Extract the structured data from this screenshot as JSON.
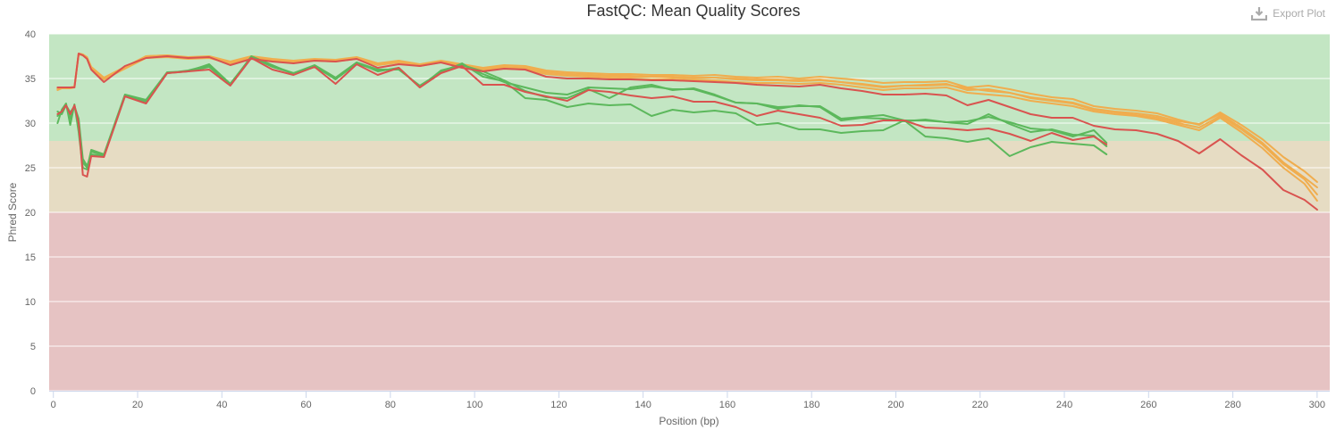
{
  "export": {
    "label": "Export Plot",
    "icon": "download-icon"
  },
  "chart_data": {
    "type": "line",
    "title": "FastQC: Mean Quality Scores",
    "xlabel": "Position (bp)",
    "ylabel": "Phred Score",
    "xlim": [
      -1,
      303
    ],
    "ylim": [
      0,
      40
    ],
    "xticks": [
      0,
      20,
      40,
      60,
      80,
      100,
      120,
      140,
      160,
      180,
      200,
      220,
      240,
      260,
      280,
      300
    ],
    "yticks": [
      0,
      5,
      10,
      15,
      20,
      25,
      30,
      35,
      40
    ],
    "grid": true,
    "legend": "none",
    "bands": [
      {
        "from": 28,
        "to": 40,
        "color": "#c3e6c3"
      },
      {
        "from": 20,
        "to": 28,
        "color": "#e6dcc3"
      },
      {
        "from": 0,
        "to": 20,
        "color": "#e6c3c3"
      }
    ],
    "series": [
      {
        "color": "#f0ad4e",
        "x": [
          1,
          2,
          3,
          4,
          5,
          6,
          7,
          8,
          9,
          12,
          17,
          22,
          27,
          32,
          37,
          42,
          47,
          52,
          57,
          62,
          67,
          72,
          77,
          82,
          87,
          92,
          97,
          102,
          107,
          112,
          117,
          122,
          127,
          132,
          137,
          142,
          147,
          152,
          157,
          162,
          167,
          172,
          177,
          182,
          187,
          192,
          197,
          202,
          207,
          212,
          217,
          222,
          227,
          232,
          237,
          242,
          247,
          252,
          257,
          262,
          267,
          272,
          277,
          282,
          287,
          292,
          297,
          300
        ],
        "y": [
          33.8,
          34.0,
          34.0,
          34.0,
          34.0,
          37.8,
          37.7,
          37.3,
          36.2,
          35.0,
          36.2,
          37.5,
          37.6,
          37.3,
          37.4,
          36.8,
          37.4,
          37.1,
          36.9,
          37.1,
          37.0,
          37.3,
          36.6,
          36.9,
          36.5,
          36.9,
          36.5,
          36.0,
          36.3,
          36.2,
          35.7,
          35.5,
          35.4,
          35.3,
          35.3,
          35.2,
          35.2,
          35.1,
          35.1,
          35.0,
          34.9,
          34.9,
          34.8,
          34.9,
          34.6,
          34.4,
          34.1,
          34.2,
          34.2,
          34.3,
          33.9,
          33.6,
          33.4,
          32.9,
          32.6,
          32.3,
          31.6,
          31.3,
          31.1,
          30.8,
          30.2,
          29.9,
          31.0,
          29.5,
          27.8,
          25.6,
          23.9,
          22.8
        ]
      },
      {
        "color": "#f0ad4e",
        "x": [
          1,
          2,
          3,
          4,
          5,
          6,
          7,
          8,
          9,
          12,
          17,
          22,
          27,
          32,
          37,
          42,
          47,
          52,
          57,
          62,
          67,
          72,
          77,
          82,
          87,
          92,
          97,
          102,
          107,
          112,
          117,
          122,
          127,
          132,
          137,
          142,
          147,
          152,
          157,
          162,
          167,
          172,
          177,
          182,
          187,
          192,
          197,
          202,
          207,
          212,
          217,
          222,
          227,
          232,
          237,
          242,
          247,
          252,
          257,
          262,
          267,
          272,
          277,
          282,
          287,
          292,
          297,
          300
        ],
        "y": [
          33.9,
          34.0,
          34.0,
          34.0,
          34.1,
          37.8,
          37.7,
          37.4,
          36.3,
          35.1,
          36.3,
          37.5,
          37.6,
          37.4,
          37.5,
          36.9,
          37.5,
          37.2,
          37.0,
          37.2,
          37.1,
          37.4,
          36.7,
          37.0,
          36.6,
          37.0,
          36.6,
          36.2,
          36.5,
          36.4,
          35.9,
          35.7,
          35.6,
          35.5,
          35.5,
          35.4,
          35.4,
          35.3,
          35.4,
          35.2,
          35.1,
          35.2,
          35.0,
          35.2,
          35.0,
          34.8,
          34.5,
          34.6,
          34.6,
          34.7,
          34.0,
          34.2,
          33.8,
          33.3,
          32.9,
          32.7,
          31.9,
          31.6,
          31.4,
          31.1,
          30.4,
          29.8,
          31.2,
          29.8,
          28.2,
          26.2,
          24.6,
          23.4
        ]
      },
      {
        "color": "#f0ad4e",
        "x": [
          1,
          2,
          3,
          4,
          5,
          6,
          7,
          8,
          9,
          12,
          17,
          22,
          27,
          32,
          37,
          42,
          47,
          52,
          57,
          62,
          67,
          72,
          77,
          82,
          87,
          92,
          97,
          102,
          107,
          112,
          117,
          122,
          127,
          132,
          137,
          142,
          147,
          152,
          157,
          162,
          167,
          172,
          177,
          182,
          187,
          192,
          197,
          202,
          207,
          212,
          217,
          222,
          227,
          232,
          237,
          242,
          247,
          252,
          257,
          262,
          267,
          272,
          277,
          282,
          287,
          292,
          297,
          300
        ],
        "y": [
          33.7,
          33.9,
          33.9,
          33.9,
          34.0,
          37.7,
          37.6,
          37.2,
          36.1,
          34.9,
          36.1,
          37.3,
          37.4,
          37.2,
          37.3,
          36.7,
          37.3,
          37.0,
          36.8,
          37.0,
          36.9,
          37.2,
          36.5,
          36.8,
          36.4,
          36.8,
          36.3,
          35.9,
          36.1,
          36.0,
          35.5,
          35.3,
          35.2,
          35.1,
          35.0,
          34.9,
          34.9,
          34.8,
          34.8,
          34.6,
          34.5,
          34.5,
          34.4,
          34.5,
          34.3,
          34.0,
          33.7,
          33.9,
          33.9,
          34.0,
          33.4,
          33.2,
          33.0,
          32.5,
          32.2,
          31.9,
          31.3,
          31.0,
          30.8,
          30.4,
          29.8,
          29.2,
          30.6,
          29.0,
          27.2,
          25.0,
          23.2,
          21.3
        ]
      },
      {
        "color": "#f0ad4e",
        "x": [
          1,
          2,
          3,
          4,
          5,
          6,
          7,
          8,
          9,
          12,
          17,
          22,
          27,
          32,
          37,
          42,
          47,
          52,
          57,
          62,
          67,
          72,
          77,
          82,
          87,
          92,
          97,
          102,
          107,
          112,
          117,
          122,
          127,
          132,
          137,
          142,
          147,
          152,
          157,
          162,
          167,
          172,
          177,
          182,
          187,
          192,
          197,
          202,
          207,
          212,
          217,
          222,
          227,
          232,
          237,
          242,
          247,
          252,
          257,
          262,
          267,
          272,
          277,
          282,
          287,
          292,
          297,
          300
        ],
        "y": [
          33.8,
          33.9,
          34.0,
          34.0,
          34.0,
          37.8,
          37.6,
          37.3,
          36.2,
          35.0,
          36.2,
          37.4,
          37.5,
          37.3,
          37.4,
          36.8,
          37.4,
          37.1,
          36.9,
          37.1,
          37.0,
          37.3,
          36.6,
          36.9,
          36.5,
          36.9,
          36.4,
          36.1,
          36.3,
          36.2,
          35.7,
          35.5,
          35.4,
          35.3,
          35.2,
          35.2,
          35.1,
          35.0,
          35.1,
          34.9,
          34.8,
          34.8,
          34.7,
          34.8,
          34.6,
          34.3,
          34.0,
          34.2,
          34.3,
          34.4,
          33.7,
          33.8,
          33.4,
          32.8,
          32.5,
          32.2,
          31.5,
          31.2,
          30.9,
          30.6,
          30.0,
          29.5,
          30.8,
          29.3,
          27.6,
          25.4,
          23.7,
          22.0
        ]
      },
      {
        "color": "#5cb85c",
        "x": [
          1,
          2,
          3,
          4,
          5,
          6,
          7,
          8,
          9,
          12,
          17,
          22,
          27,
          32,
          37,
          42,
          47,
          52,
          57,
          62,
          67,
          72,
          77,
          82,
          87,
          92,
          97,
          102,
          107,
          112,
          117,
          122,
          127,
          132,
          137,
          142,
          147,
          152,
          157,
          162,
          167,
          172,
          177,
          182,
          187,
          192,
          197,
          202,
          207,
          212,
          217,
          222,
          227,
          232,
          237,
          242,
          247,
          250
        ],
        "y": [
          30.0,
          31.5,
          32.2,
          29.8,
          32.1,
          29.0,
          25.0,
          24.8,
          27.0,
          26.5,
          33.2,
          32.6,
          35.7,
          35.8,
          36.6,
          34.4,
          37.4,
          36.3,
          35.6,
          36.4,
          34.9,
          36.7,
          35.9,
          36.1,
          34.1,
          35.8,
          36.6,
          35.5,
          34.6,
          34.0,
          33.4,
          33.2,
          34.0,
          33.9,
          33.8,
          34.1,
          33.8,
          33.8,
          33.1,
          32.3,
          32.2,
          31.8,
          31.9,
          31.9,
          30.5,
          30.7,
          30.9,
          30.3,
          30.3,
          30.1,
          30.2,
          30.7,
          30.1,
          29.4,
          29.2,
          28.5,
          29.2,
          27.8
        ]
      },
      {
        "color": "#5cb85c",
        "x": [
          1,
          2,
          3,
          4,
          5,
          6,
          7,
          8,
          9,
          12,
          17,
          22,
          27,
          32,
          37,
          42,
          47,
          52,
          57,
          62,
          67,
          72,
          77,
          82,
          87,
          92,
          97,
          102,
          107,
          112,
          117,
          122,
          127,
          132,
          137,
          142,
          147,
          152,
          157,
          162,
          167,
          172,
          177,
          182,
          187,
          192,
          197,
          202,
          207,
          212,
          217,
          222,
          227,
          232,
          237,
          242,
          247,
          250
        ],
        "y": [
          31.3,
          31.0,
          32.0,
          31.2,
          31.9,
          30.5,
          26.0,
          25.2,
          26.5,
          26.3,
          33.0,
          32.4,
          35.6,
          35.8,
          36.3,
          34.3,
          37.5,
          36.5,
          35.5,
          36.3,
          35.0,
          36.8,
          35.8,
          36.2,
          34.0,
          35.9,
          36.5,
          35.8,
          34.8,
          33.6,
          32.9,
          32.8,
          33.8,
          32.8,
          34.0,
          34.3,
          33.7,
          33.9,
          33.2,
          32.3,
          32.2,
          31.6,
          32.0,
          31.8,
          30.3,
          30.6,
          30.5,
          30.2,
          30.4,
          30.1,
          29.9,
          31.0,
          29.9,
          29.0,
          29.3,
          28.7,
          28.6,
          27.4
        ]
      },
      {
        "color": "#5cb85c",
        "x": [
          1,
          2,
          3,
          4,
          5,
          6,
          7,
          8,
          9,
          12,
          17,
          22,
          27,
          32,
          37,
          42,
          47,
          52,
          57,
          62,
          67,
          72,
          77,
          82,
          87,
          92,
          97,
          102,
          107,
          112,
          117,
          122,
          127,
          132,
          137,
          142,
          147,
          152,
          157,
          162,
          167,
          172,
          177,
          182,
          187,
          192,
          197,
          202,
          207,
          212,
          217,
          222,
          227,
          232,
          237,
          242,
          247,
          250
        ],
        "y": [
          30.8,
          31.2,
          32.1,
          30.5,
          32.0,
          29.6,
          25.6,
          25.0,
          26.8,
          26.4,
          33.1,
          32.5,
          35.6,
          35.9,
          36.5,
          34.4,
          37.4,
          36.4,
          35.6,
          36.5,
          35.1,
          36.8,
          36.0,
          36.0,
          34.2,
          35.7,
          36.7,
          35.2,
          34.7,
          32.8,
          32.6,
          31.8,
          32.2,
          32.0,
          32.1,
          30.8,
          31.5,
          31.2,
          31.4,
          31.1,
          29.8,
          30.0,
          29.3,
          29.3,
          28.9,
          29.1,
          29.2,
          30.3,
          28.5,
          28.3,
          27.9,
          28.3,
          26.3,
          27.3,
          27.9,
          27.7,
          27.5,
          26.5
        ]
      },
      {
        "color": "#d9534f",
        "x": [
          1,
          2,
          3,
          4,
          5,
          6,
          7,
          8,
          9,
          12,
          17,
          22,
          27,
          32,
          37,
          42,
          47,
          52,
          57,
          62,
          67,
          72,
          77,
          82,
          87,
          92,
          97,
          102,
          107,
          112,
          117,
          122,
          127,
          132,
          137,
          142,
          147,
          152,
          157,
          162,
          167,
          172,
          177,
          182,
          187,
          192,
          197,
          202,
          207,
          212,
          217,
          222,
          227,
          232,
          237,
          242,
          247,
          252,
          257,
          262,
          267,
          272,
          277,
          282,
          287,
          292,
          297,
          300
        ],
        "y": [
          34.0,
          34.0,
          34.0,
          34.0,
          34.0,
          37.8,
          37.6,
          37.2,
          36.0,
          34.6,
          36.4,
          37.3,
          37.5,
          37.3,
          37.4,
          36.5,
          37.2,
          36.9,
          36.7,
          37.0,
          36.9,
          37.2,
          36.2,
          36.6,
          36.4,
          36.8,
          36.2,
          35.8,
          36.1,
          36.0,
          35.2,
          35.0,
          35.0,
          34.9,
          34.9,
          34.8,
          34.8,
          34.7,
          34.6,
          34.5,
          34.3,
          34.2,
          34.1,
          34.3,
          33.9,
          33.6,
          33.2,
          33.2,
          33.3,
          33.1,
          32.0,
          32.6,
          31.8,
          31.0,
          30.6,
          30.6,
          29.7,
          29.3,
          29.2,
          28.8,
          28.0,
          26.6,
          28.2,
          26.4,
          24.8,
          22.5,
          21.4,
          20.3
        ]
      },
      {
        "color": "#d9534f",
        "x": [
          1,
          2,
          3,
          4,
          5,
          6,
          7,
          8,
          9,
          12,
          17,
          22,
          27,
          32,
          37,
          42,
          47,
          52,
          57,
          62,
          67,
          72,
          77,
          82,
          87,
          92,
          97,
          102,
          107,
          112,
          117,
          122,
          127,
          132,
          137,
          142,
          147,
          152,
          157,
          162,
          167,
          172,
          177,
          182,
          187,
          192,
          197,
          202,
          207,
          212,
          217,
          222,
          227,
          232,
          237,
          242,
          247,
          250
        ],
        "y": [
          31.0,
          31.3,
          32.0,
          31.0,
          32.0,
          30.0,
          24.2,
          24.0,
          26.3,
          26.2,
          33.0,
          32.2,
          35.6,
          35.8,
          36.0,
          34.2,
          37.3,
          36.0,
          35.4,
          36.3,
          34.4,
          36.6,
          35.4,
          36.2,
          34.0,
          35.6,
          36.4,
          34.3,
          34.3,
          33.5,
          33.0,
          32.5,
          33.7,
          33.5,
          33.1,
          32.8,
          33.0,
          32.4,
          32.4,
          31.8,
          30.8,
          31.4,
          31.0,
          30.6,
          29.7,
          29.8,
          30.3,
          30.3,
          29.5,
          29.4,
          29.2,
          29.4,
          28.8,
          28.0,
          28.9,
          28.1,
          28.5,
          27.6
        ]
      }
    ]
  }
}
